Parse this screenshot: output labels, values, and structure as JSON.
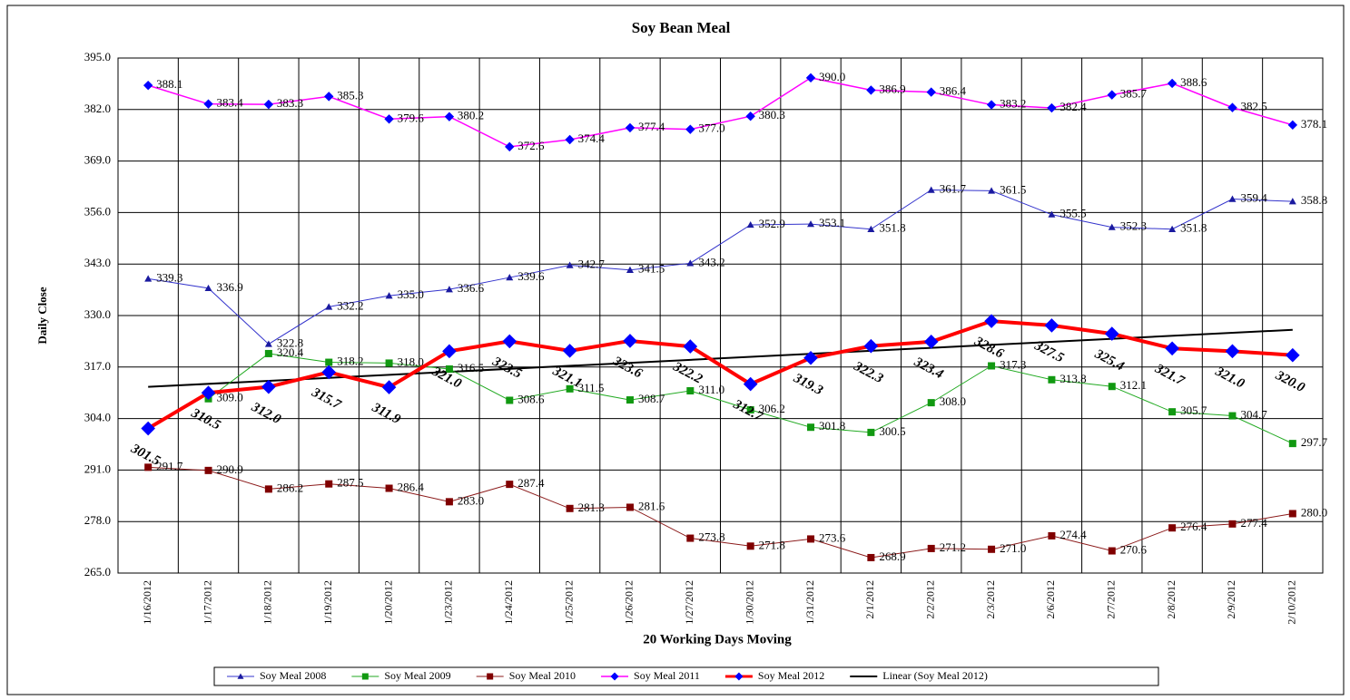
{
  "chart_data": {
    "type": "line",
    "title": "Soy Bean Meal",
    "y_label": "Daily Close",
    "x_label": "20 Working Days Moving",
    "categories": [
      "1/16/2012",
      "1/17/2012",
      "1/18/2012",
      "1/19/2012",
      "1/20/2012",
      "1/23/2012",
      "1/24/2012",
      "1/25/2012",
      "1/26/2012",
      "1/27/2012",
      "1/30/2012",
      "1/31/2012",
      "2/1/2012",
      "2/2/2012",
      "2/3/2012",
      "2/6/2012",
      "2/7/2012",
      "2/8/2012",
      "2/9/2012",
      "2/10/2012"
    ],
    "ylim": [
      265,
      395
    ],
    "yticks": [
      {
        "value": 265,
        "label": "265.0"
      },
      {
        "value": 278,
        "label": "278.0"
      },
      {
        "value": 291,
        "label": "291.0"
      },
      {
        "value": 304,
        "label": "304.0"
      },
      {
        "value": 317,
        "label": "317.0"
      },
      {
        "value": 330,
        "label": "330.0"
      },
      {
        "value": 343,
        "label": "343.0"
      },
      {
        "value": 356,
        "label": "356.0"
      },
      {
        "value": 369,
        "label": "369.0"
      },
      {
        "value": 382,
        "label": "382.0"
      },
      {
        "value": 395,
        "label": "395.0"
      }
    ],
    "grid": true,
    "series": [
      {
        "name": "Soy Meal 2008",
        "color": "#3333cc",
        "marker": "triangle",
        "marker_color": "#1a1aa0",
        "width": 1,
        "values": [
          339.3,
          336.9,
          322.8,
          332.2,
          335.0,
          336.6,
          339.6,
          342.7,
          341.5,
          343.2,
          352.9,
          353.1,
          351.8,
          361.7,
          361.5,
          355.5,
          352.3,
          351.8,
          359.4,
          358.8
        ],
        "value_labels": [
          "339.3",
          "336.9",
          "322.8",
          "332.2",
          "335.0",
          "336.6",
          "339.6",
          "342.7",
          "341.5",
          "343.2",
          "352.9",
          "353.1",
          "351.8",
          "361.7",
          "361.5",
          "355.5",
          "352.3",
          "351.8",
          "359.4",
          "358.8"
        ]
      },
      {
        "name": "Soy Meal 2009",
        "color": "#22aa22",
        "marker": "square",
        "marker_color": "#119911",
        "width": 1,
        "values": [
          null,
          309.0,
          320.4,
          318.2,
          318.0,
          316.5,
          308.6,
          311.5,
          308.7,
          311.0,
          306.2,
          301.8,
          300.5,
          308.0,
          317.3,
          313.8,
          312.1,
          305.7,
          304.7,
          297.7
        ],
        "value_labels": [
          null,
          "309.0",
          "320.4",
          "318.2",
          "318.0",
          "316.5",
          "308.6",
          "311.5",
          "308.7",
          "311.0",
          "306.2",
          "301.8",
          "300.5",
          "308.0",
          "317.3",
          "313.8",
          "312.1",
          "305.7",
          "304.7",
          "297.7"
        ]
      },
      {
        "name": "Soy Meal 2010",
        "color": "#8b1a1a",
        "marker": "square",
        "marker_color": "#800000",
        "width": 1,
        "values": [
          291.7,
          290.9,
          286.2,
          287.5,
          286.4,
          283.0,
          287.4,
          281.3,
          281.6,
          273.8,
          271.8,
          273.6,
          268.9,
          271.2,
          271.0,
          274.4,
          270.6,
          276.4,
          277.4,
          280.0
        ],
        "value_labels": [
          "291.7",
          "290.9",
          "286.2",
          "287.5",
          "286.4",
          "283.0",
          "287.4",
          "281.3",
          "281.6",
          "273.8",
          "271.8",
          "273.6",
          "268.9",
          "271.2",
          "271.0",
          "274.4",
          "270.6",
          "276.4",
          "277.4",
          "280.0"
        ]
      },
      {
        "name": "Soy Meal 2011",
        "color": "#ff00ff",
        "marker": "diamond",
        "marker_color": "#0000ff",
        "width": 1.5,
        "values": [
          388.1,
          383.4,
          383.3,
          385.3,
          379.6,
          380.2,
          372.6,
          374.4,
          377.4,
          377.0,
          380.3,
          390.0,
          386.9,
          386.4,
          383.2,
          382.4,
          385.7,
          388.6,
          382.5,
          378.1
        ],
        "value_labels": [
          "388.1",
          "383.4",
          "383.3",
          "385.3",
          "379.6",
          "380.2",
          "372.6",
          "374.4",
          "377.4",
          "377.0",
          "380.3",
          "390.0",
          "386.9",
          "386.4",
          "383.2",
          "382.4",
          "385.7",
          "388.6",
          "382.5",
          "378.1"
        ]
      },
      {
        "name": "Soy Meal 2012",
        "color": "#ff0000",
        "marker": "diamond",
        "marker_color": "#0000ff",
        "width": 4,
        "label_bold": true,
        "values": [
          301.5,
          310.5,
          312.0,
          315.7,
          311.9,
          321.0,
          323.5,
          321.1,
          323.6,
          322.2,
          312.7,
          319.3,
          322.3,
          323.4,
          328.6,
          327.5,
          325.4,
          321.7,
          321.0,
          320.0
        ],
        "value_labels": [
          "301.5",
          "310.5",
          "312.0",
          "315.7",
          "311.9",
          "321.0",
          "323.5",
          "321.1",
          "323.6",
          "322.2",
          "312.7",
          "319.3",
          "322.3",
          "323.4",
          "328.6",
          "327.5",
          "325.4",
          "321.7",
          "321.0",
          "320.0"
        ]
      }
    ],
    "trendline": {
      "name": "Linear (Soy Meal 2012)",
      "color": "#000000",
      "values": [
        312.0,
        326.4
      ]
    }
  }
}
